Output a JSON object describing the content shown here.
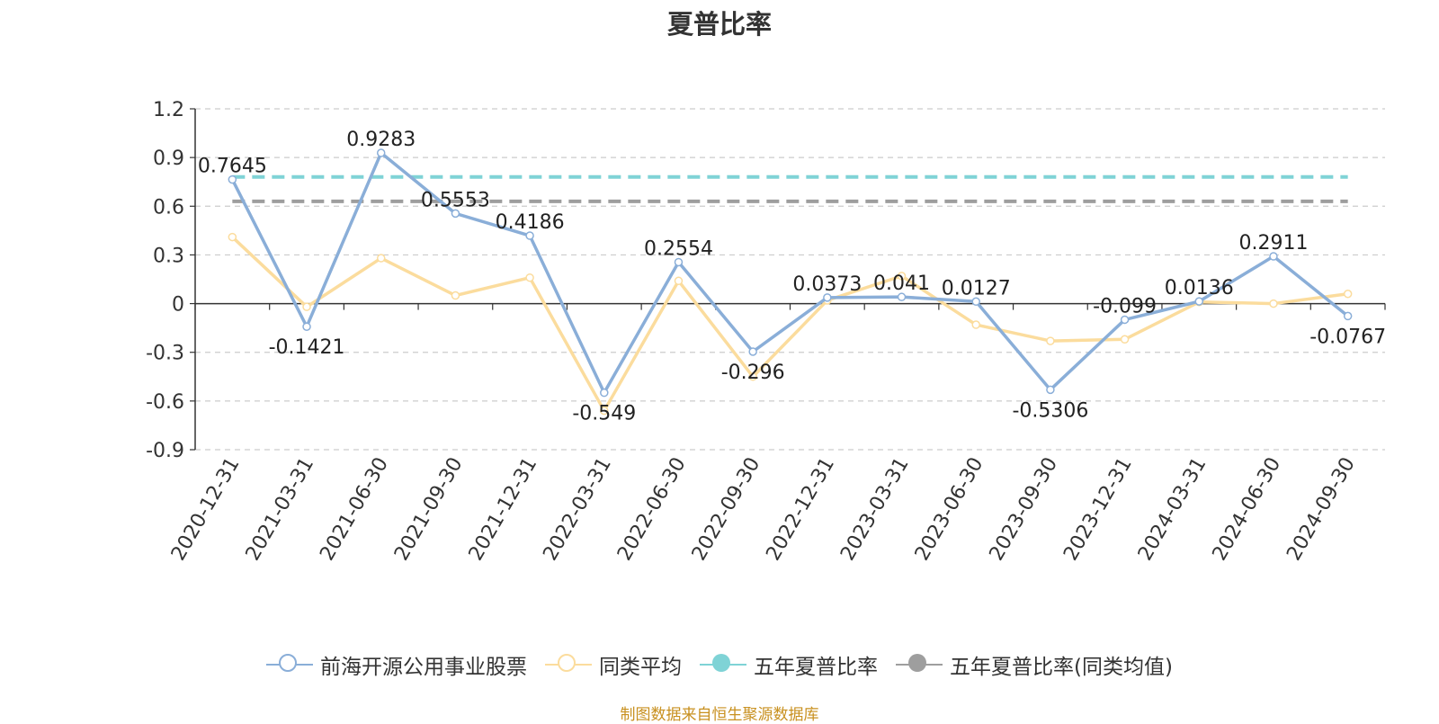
{
  "title": "夏普比率",
  "source_note": "制图数据来自恒生聚源数据库",
  "chart_data": {
    "type": "line",
    "title": "夏普比率",
    "x": [
      "2020-12-31",
      "2021-03-31",
      "2021-06-30",
      "2021-09-30",
      "2021-12-31",
      "2022-03-31",
      "2022-06-30",
      "2022-09-30",
      "2022-12-31",
      "2023-03-31",
      "2023-06-30",
      "2023-09-30",
      "2023-12-31",
      "2024-03-31",
      "2024-06-30",
      "2024-09-30"
    ],
    "yticks": [
      "1.2",
      "0.9",
      "0.6",
      "0.3",
      "0",
      "-0.3",
      "-0.6",
      "-0.9"
    ],
    "ylim": [
      -0.9,
      1.2
    ],
    "grid": true,
    "legend_position": "bottom",
    "series": [
      {
        "name": "前海开源公用事业股票",
        "color": "#8aaed8",
        "values": [
          0.7645,
          -0.1421,
          0.9283,
          0.5553,
          0.4186,
          -0.549,
          0.2554,
          -0.296,
          0.0373,
          0.041,
          0.0127,
          -0.5306,
          -0.099,
          0.0136,
          0.2911,
          -0.0767
        ],
        "labels": [
          "0.7645",
          "-0.1421",
          "0.9283",
          "0.5553",
          "0.4186",
          "-0.549",
          "0.2554",
          "-0.296",
          "0.0373",
          "0.041",
          "0.0127",
          "-0.5306",
          "-0.099",
          "0.0136",
          "0.2911",
          "-0.0767"
        ]
      },
      {
        "name": "同类平均",
        "color": "#fbdc9d",
        "values": [
          0.41,
          -0.02,
          0.28,
          0.05,
          0.16,
          -0.66,
          0.14,
          -0.45,
          0.02,
          0.17,
          -0.13,
          -0.23,
          -0.22,
          0.01,
          0.0,
          0.06
        ]
      }
    ],
    "reference_lines": [
      {
        "name": "五年夏普比率",
        "color": "#7fd3d6",
        "value": 0.78
      },
      {
        "name": "五年夏普比率(同类均值)",
        "color": "#9e9e9e",
        "value": 0.63
      }
    ]
  },
  "legend": [
    {
      "label": "前海开源公用事业股票",
      "color": "#8aaed8",
      "style": "hollow"
    },
    {
      "label": "同类平均",
      "color": "#fbdc9d",
      "style": "hollow"
    },
    {
      "label": "五年夏普比率",
      "color": "#7fd3d6",
      "style": "filled"
    },
    {
      "label": "五年夏普比率(同类均值)",
      "color": "#9e9e9e",
      "style": "filled"
    }
  ]
}
